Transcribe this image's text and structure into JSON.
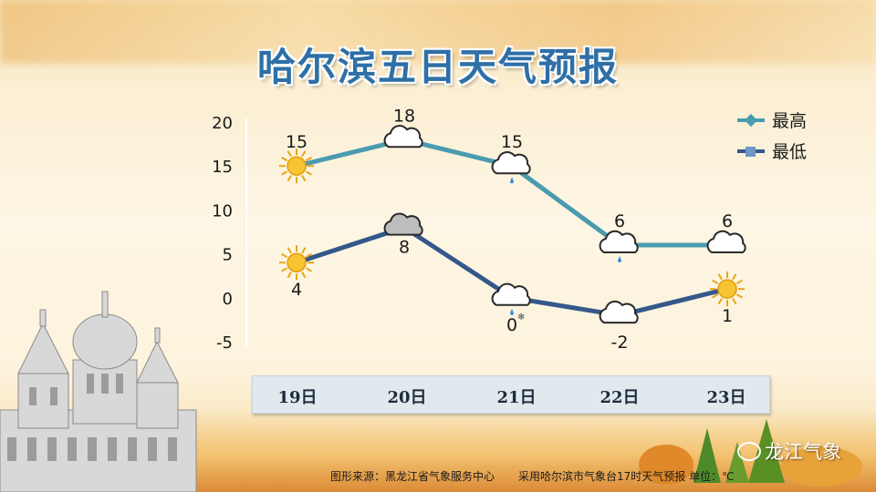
{
  "title": "哈尔滨五日天气预报",
  "footer": {
    "source": "图形来源：黑龙江省气象服务中心",
    "note": "采用哈尔滨市气象台17时天气预报 单位：℃"
  },
  "brand": "龙江气象",
  "colors": {
    "high_line": "#4a9bb0",
    "low_line": "#34588a",
    "title": "#2e6fa6"
  },
  "chart_data": {
    "type": "line",
    "categories": [
      "19日",
      "20日",
      "21日",
      "22日",
      "23日"
    ],
    "series": [
      {
        "name": "最高",
        "values": [
          15,
          18,
          15,
          6,
          6
        ],
        "marker": "diamond"
      },
      {
        "name": "最低",
        "values": [
          4,
          8,
          0,
          -2,
          1
        ],
        "marker": "square"
      }
    ],
    "weather_icons": {
      "high": [
        "sunny-icon",
        "cloudy-icon",
        "light-rain-icon",
        "light-rain-icon",
        "cloudy-icon"
      ],
      "low": [
        "sunny-icon",
        "overcast-icon",
        "sleet-icon",
        "cloudy-icon",
        "sunny-icon"
      ]
    },
    "ylim": [
      -5,
      20
    ],
    "yticks": [
      -5,
      0,
      5,
      10,
      15,
      20
    ],
    "legend_position": "top-right",
    "grid": false,
    "xlabel": "",
    "ylabel": ""
  }
}
